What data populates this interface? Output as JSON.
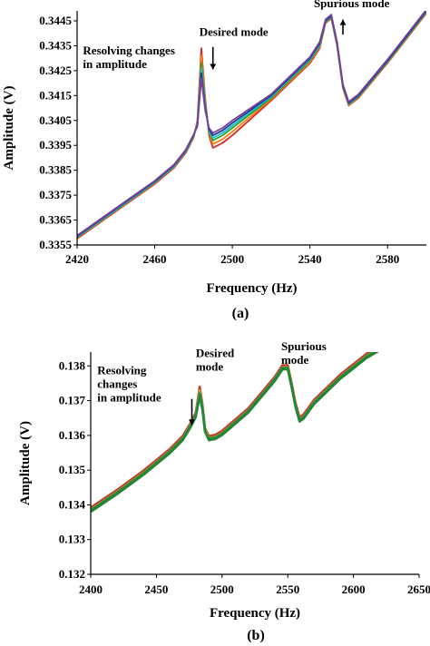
{
  "chart_data": [
    {
      "type": "line",
      "panel_label": "(a)",
      "xlabel": "Frequency (Hz)",
      "ylabel": "Amplitude (V)",
      "xlim": [
        2420,
        2600
      ],
      "ylim": [
        0.3355,
        0.3449
      ],
      "x_ticks": [
        2420,
        2460,
        2500,
        2540,
        2580
      ],
      "x_tick_labels": [
        "2420",
        "2460",
        "2500",
        "2540",
        "2580"
      ],
      "y_ticks": [
        0.3355,
        0.3365,
        0.3375,
        0.3385,
        0.3395,
        0.3405,
        0.3415,
        0.3425,
        0.3435,
        0.3445
      ],
      "y_tick_labels": [
        "0.3355",
        "0.3365",
        "0.3375",
        "0.3385",
        "0.3395",
        "0.3405",
        "0.3415",
        "0.3425",
        "0.3435",
        "0.3445"
      ],
      "grid": false,
      "annotations": [
        {
          "lines": [
            "Resolving changes",
            "in amplitude"
          ],
          "x": 2423,
          "y": 0.34315
        },
        {
          "lines": [
            "Desired mode"
          ],
          "x": 2483,
          "y": 0.3439
        },
        {
          "lines": [
            "Spurious mode"
          ],
          "x": 2542,
          "y": 0.34505
        }
      ],
      "arrows": [
        {
          "x": 2490,
          "y1": 0.34345,
          "y2": 0.34255
        },
        {
          "x": 2557,
          "y1": 0.34395,
          "y2": 0.34455
        }
      ],
      "series": [
        {
          "color": "#d62728",
          "x": [
            2420,
            2440,
            2460,
            2470,
            2476,
            2480,
            2482,
            2484,
            2486,
            2488,
            2490,
            2495,
            2500,
            2520,
            2540,
            2545,
            2548,
            2551,
            2554,
            2557,
            2560,
            2565,
            2580,
            2600
          ],
          "y": [
            0.33575,
            0.33685,
            0.33795,
            0.3386,
            0.3392,
            0.3398,
            0.3405,
            0.3434,
            0.3414,
            0.3399,
            0.3394,
            0.3396,
            0.3399,
            0.3413,
            0.3428,
            0.3434,
            0.3444,
            0.3446,
            0.3435,
            0.3418,
            0.3411,
            0.3414,
            0.3428,
            0.3448
          ]
        },
        {
          "color": "#ff7f0e",
          "x": [
            2420,
            2440,
            2460,
            2470,
            2476,
            2480,
            2482,
            2484,
            2486,
            2488,
            2490,
            2495,
            2500,
            2520,
            2540,
            2545,
            2548,
            2551,
            2554,
            2557,
            2560,
            2565,
            2580,
            2600
          ],
          "y": [
            0.33578,
            0.33688,
            0.33798,
            0.33863,
            0.33923,
            0.33983,
            0.34045,
            0.3431,
            0.3413,
            0.34,
            0.33955,
            0.33975,
            0.34005,
            0.34135,
            0.34285,
            0.34345,
            0.34442,
            0.34462,
            0.34352,
            0.34182,
            0.34112,
            0.34142,
            0.34282,
            0.34482
          ]
        },
        {
          "color": "#2ca02c",
          "x": [
            2420,
            2440,
            2460,
            2470,
            2476,
            2480,
            2482,
            2484,
            2486,
            2488,
            2490,
            2495,
            2500,
            2520,
            2540,
            2545,
            2548,
            2551,
            2554,
            2557,
            2560,
            2565,
            2580,
            2600
          ],
          "y": [
            0.3358,
            0.3369,
            0.338,
            0.33865,
            0.33925,
            0.33985,
            0.3404,
            0.3428,
            0.3412,
            0.34005,
            0.3397,
            0.3399,
            0.3402,
            0.3414,
            0.3429,
            0.3435,
            0.34445,
            0.34465,
            0.34355,
            0.34185,
            0.34115,
            0.34145,
            0.34285,
            0.34485
          ]
        },
        {
          "color": "#17becf",
          "x": [
            2420,
            2440,
            2460,
            2470,
            2476,
            2480,
            2482,
            2484,
            2486,
            2488,
            2490,
            2495,
            2500,
            2520,
            2540,
            2545,
            2548,
            2551,
            2554,
            2557,
            2560,
            2565,
            2580,
            2600
          ],
          "y": [
            0.33582,
            0.33692,
            0.33802,
            0.33867,
            0.33927,
            0.33987,
            0.34035,
            0.3426,
            0.3411,
            0.3401,
            0.3398,
            0.34,
            0.3403,
            0.34145,
            0.34295,
            0.34355,
            0.34448,
            0.34468,
            0.34358,
            0.34188,
            0.34118,
            0.34148,
            0.34288,
            0.34488
          ]
        },
        {
          "color": "#1f3a93",
          "x": [
            2420,
            2440,
            2460,
            2470,
            2476,
            2480,
            2482,
            2484,
            2486,
            2488,
            2490,
            2495,
            2500,
            2520,
            2540,
            2545,
            2548,
            2551,
            2554,
            2557,
            2560,
            2565,
            2580,
            2600
          ],
          "y": [
            0.33585,
            0.33695,
            0.33805,
            0.3387,
            0.3393,
            0.3399,
            0.3403,
            0.3424,
            0.341,
            0.34015,
            0.3399,
            0.3401,
            0.3404,
            0.3415,
            0.343,
            0.3436,
            0.3445,
            0.3447,
            0.3436,
            0.3419,
            0.3412,
            0.3415,
            0.3429,
            0.3449
          ]
        },
        {
          "color": "#7f3f98",
          "x": [
            2420,
            2440,
            2460,
            2470,
            2476,
            2480,
            2482,
            2484,
            2486,
            2488,
            2490,
            2495,
            2500,
            2520,
            2540,
            2545,
            2548,
            2551,
            2554,
            2557,
            2560,
            2565,
            2580,
            2600
          ],
          "y": [
            0.33588,
            0.33698,
            0.33808,
            0.33873,
            0.33933,
            0.33993,
            0.34025,
            0.3422,
            0.3409,
            0.3402,
            0.34,
            0.3402,
            0.3405,
            0.34155,
            0.34305,
            0.34365,
            0.34455,
            0.34475,
            0.34365,
            0.34195,
            0.34125,
            0.34155,
            0.34295,
            0.34495
          ]
        }
      ]
    },
    {
      "type": "line",
      "panel_label": "(b)",
      "xlabel": "Frequency (Hz)",
      "ylabel": "Amplitude (V)",
      "xlim": [
        2400,
        2650
      ],
      "ylim": [
        0.132,
        0.1384
      ],
      "x_ticks": [
        2400,
        2450,
        2500,
        2550,
        2600,
        2650
      ],
      "x_tick_labels": [
        "2400",
        "2450",
        "2500",
        "2550",
        "2600",
        "2650"
      ],
      "y_ticks": [
        0.132,
        0.133,
        0.134,
        0.135,
        0.136,
        0.137,
        0.138
      ],
      "y_tick_labels": [
        "0.132",
        "0.133",
        "0.134",
        "0.135",
        "0.136",
        "0.137",
        "0.138"
      ],
      "grid": false,
      "annotations": [
        {
          "lines": [
            "Resolving",
            "changes",
            "in amplitude"
          ],
          "x": 2405,
          "y": 0.13776
        },
        {
          "lines": [
            "Desired",
            "mode"
          ],
          "x": 2480,
          "y": 0.13825
        },
        {
          "lines": [
            "Spurious",
            "mode"
          ],
          "x": 2545,
          "y": 0.13845
        }
      ],
      "arrows": [
        {
          "x": 2477,
          "y1": 0.13705,
          "y2": 0.1363
        }
      ],
      "series": [
        {
          "color": "#c0392b",
          "x": [
            2400,
            2420,
            2440,
            2460,
            2470,
            2476,
            2480,
            2483,
            2485,
            2487,
            2490,
            2495,
            2500,
            2520,
            2540,
            2546,
            2550,
            2553,
            2556,
            2559,
            2562,
            2570,
            2590,
            2610,
            2627
          ],
          "y": [
            0.13392,
            0.13443,
            0.13498,
            0.1356,
            0.13598,
            0.13635,
            0.13665,
            0.1374,
            0.1369,
            0.1362,
            0.13598,
            0.13602,
            0.13613,
            0.13678,
            0.13768,
            0.13802,
            0.13802,
            0.1375,
            0.13692,
            0.13652,
            0.1366,
            0.13702,
            0.13775,
            0.13835,
            0.13872
          ]
        },
        {
          "color": "#b8a038",
          "x": [
            2400,
            2420,
            2440,
            2460,
            2470,
            2476,
            2480,
            2483,
            2485,
            2487,
            2490,
            2495,
            2500,
            2520,
            2540,
            2546,
            2550,
            2553,
            2556,
            2559,
            2562,
            2570,
            2590,
            2610,
            2627
          ],
          "y": [
            0.13386,
            0.13437,
            0.13492,
            0.13554,
            0.13592,
            0.13629,
            0.13659,
            0.1373,
            0.13685,
            0.13617,
            0.13592,
            0.13596,
            0.13607,
            0.13672,
            0.13762,
            0.13796,
            0.13796,
            0.13744,
            0.13686,
            0.13646,
            0.13654,
            0.13696,
            0.13769,
            0.13829,
            0.13866
          ]
        },
        {
          "color": "#2e7d32",
          "x": [
            2400,
            2420,
            2440,
            2460,
            2470,
            2476,
            2480,
            2483,
            2485,
            2487,
            2490,
            2495,
            2500,
            2520,
            2540,
            2546,
            2550,
            2553,
            2556,
            2559,
            2562,
            2570,
            2590,
            2610,
            2627
          ],
          "y": [
            0.1338,
            0.13431,
            0.13486,
            0.13548,
            0.13586,
            0.13623,
            0.13653,
            0.1372,
            0.1368,
            0.13612,
            0.13586,
            0.1359,
            0.13601,
            0.13666,
            0.13756,
            0.1379,
            0.1379,
            0.13738,
            0.1368,
            0.1364,
            0.13648,
            0.1369,
            0.13763,
            0.13823,
            0.1386
          ]
        },
        {
          "color": "#1b8a3a",
          "x": [
            2400,
            2420,
            2440,
            2460,
            2470,
            2476,
            2480,
            2483,
            2485,
            2487,
            2490,
            2495,
            2500,
            2520,
            2540,
            2546,
            2550,
            2553,
            2556,
            2559,
            2562,
            2570,
            2590,
            2610,
            2627
          ],
          "y": [
            0.13384,
            0.13435,
            0.1349,
            0.13552,
            0.1359,
            0.13627,
            0.13657,
            0.13712,
            0.13675,
            0.1361,
            0.1359,
            0.13594,
            0.13605,
            0.1367,
            0.1376,
            0.13794,
            0.13794,
            0.13742,
            0.13684,
            0.13644,
            0.13652,
            0.13694,
            0.13767,
            0.13827,
            0.13864
          ]
        }
      ]
    }
  ]
}
